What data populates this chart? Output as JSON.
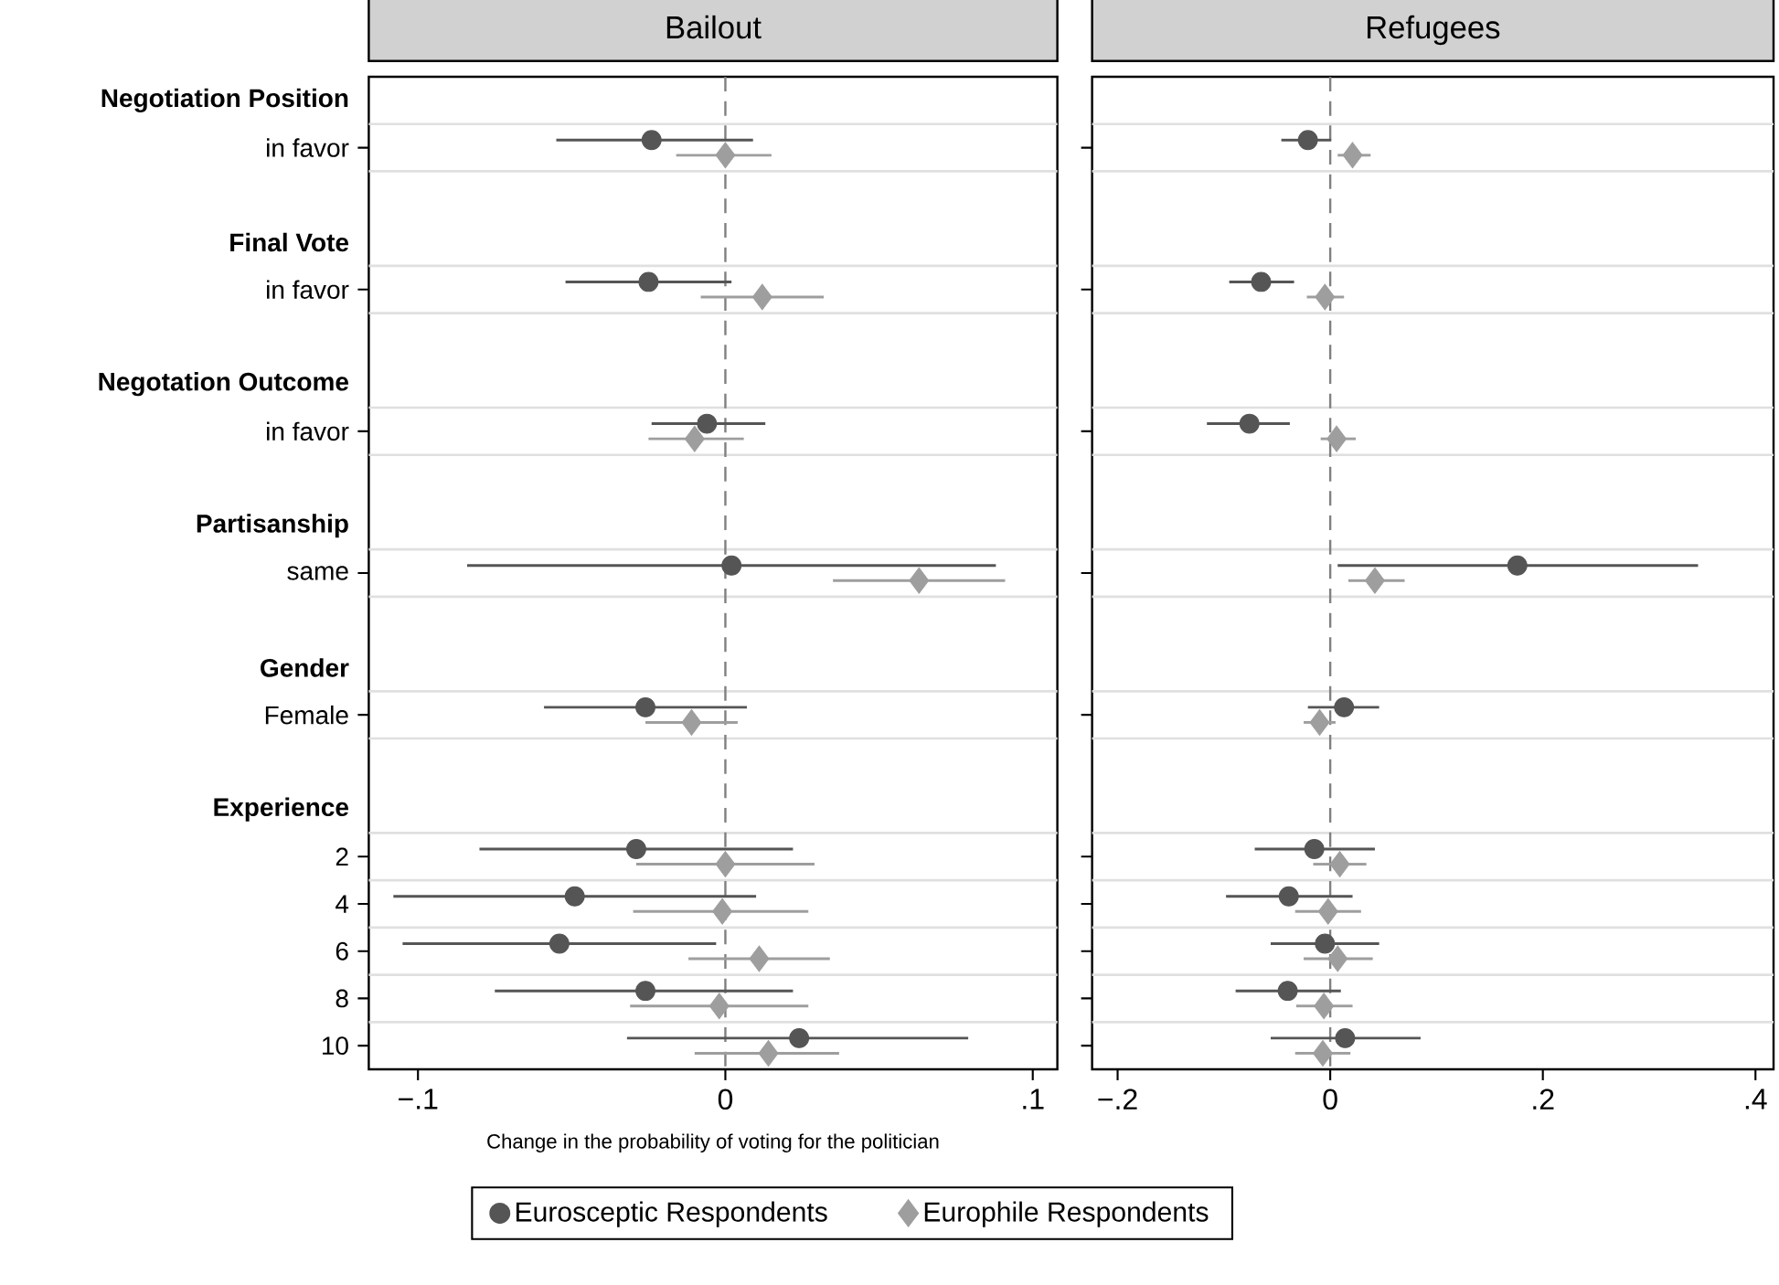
{
  "chart_data": [
    {
      "type": "scatter",
      "title": "Bailout",
      "orientation": "horizontal",
      "categories": [
        "Negotiation Position",
        "in favor",
        null,
        "Final Vote",
        "in favor",
        null,
        "Negotation Outcome",
        "in favor",
        null,
        "Partisanship",
        "same",
        null,
        "Gender",
        "Female",
        null,
        "Experience",
        "2",
        "4",
        "6",
        "8",
        "10"
      ],
      "series": [
        {
          "name": "Eurosceptic Respondents",
          "color": "#555555",
          "marker": "circle",
          "values": [
            null,
            -0.024,
            null,
            null,
            -0.025,
            null,
            null,
            -0.006,
            null,
            null,
            0.002,
            null,
            null,
            -0.026,
            null,
            null,
            -0.029,
            -0.049,
            -0.054,
            -0.026,
            0.024
          ],
          "errors": [
            null,
            [
              -0.055,
              0.009
            ],
            null,
            null,
            [
              -0.052,
              0.002
            ],
            null,
            null,
            [
              -0.024,
              0.013
            ],
            null,
            null,
            [
              -0.084,
              0.088
            ],
            null,
            null,
            [
              -0.059,
              0.007
            ],
            null,
            null,
            [
              -0.08,
              0.022
            ],
            [
              -0.108,
              0.01
            ],
            [
              -0.105,
              -0.003
            ],
            [
              -0.075,
              0.022
            ],
            [
              -0.032,
              0.079
            ]
          ]
        },
        {
          "name": "Europhile Respondents",
          "color": "#9e9e9e",
          "marker": "diamond",
          "values": [
            null,
            0.0,
            null,
            null,
            0.012,
            null,
            null,
            -0.01,
            null,
            null,
            0.063,
            null,
            null,
            -0.011,
            null,
            null,
            0.0,
            -0.001,
            0.011,
            -0.002,
            0.014
          ],
          "errors": [
            null,
            [
              -0.016,
              0.015
            ],
            null,
            null,
            [
              -0.008,
              0.032
            ],
            null,
            null,
            [
              -0.025,
              0.006
            ],
            null,
            null,
            [
              0.035,
              0.091
            ],
            null,
            null,
            [
              -0.026,
              0.004
            ],
            null,
            null,
            [
              -0.029,
              0.029
            ],
            [
              -0.03,
              0.027
            ],
            [
              -0.012,
              0.034
            ],
            [
              -0.031,
              0.027
            ],
            [
              -0.01,
              0.037
            ]
          ]
        }
      ],
      "xlim": [
        -0.116,
        0.108
      ],
      "xticks": [
        {
          "value": -0.1,
          "label": "−.1"
        },
        {
          "value": 0,
          "label": "0"
        },
        {
          "value": 0.1,
          "label": ".1"
        }
      ],
      "xlabel": "Change in the probability of voting for the politician",
      "ref_lines": [
        {
          "axis": "x",
          "value": 0,
          "color": "#808080",
          "line_style": "dashed"
        }
      ],
      "grid": true,
      "legend": "bottom"
    },
    {
      "type": "scatter",
      "title": "Refugees",
      "orientation": "horizontal",
      "categories": [
        null,
        null,
        null,
        null,
        null,
        null,
        null,
        null,
        null,
        null,
        null,
        null,
        null,
        null,
        null,
        null,
        null,
        null,
        null,
        null,
        null
      ],
      "series": [
        {
          "color": "#555555",
          "marker": "circle",
          "values": [
            null,
            -0.021,
            null,
            null,
            -0.065,
            null,
            null,
            -0.076,
            null,
            null,
            0.176,
            null,
            null,
            0.013,
            null,
            null,
            -0.015,
            -0.039,
            -0.005,
            -0.04,
            0.014
          ],
          "errors": [
            null,
            [
              -0.046,
              0.001
            ],
            null,
            null,
            [
              -0.095,
              -0.034
            ],
            null,
            null,
            [
              -0.116,
              -0.038
            ],
            null,
            null,
            [
              0.007,
              0.346
            ],
            null,
            null,
            [
              -0.021,
              0.046
            ],
            null,
            null,
            [
              -0.071,
              0.042
            ],
            [
              -0.098,
              0.021
            ],
            [
              -0.056,
              0.046
            ],
            [
              -0.089,
              0.01
            ],
            [
              -0.056,
              0.085
            ]
          ]
        },
        {
          "color": "#9e9e9e",
          "marker": "diamond",
          "values": [
            null,
            0.021,
            null,
            null,
            -0.005,
            null,
            null,
            0.006,
            null,
            null,
            0.042,
            null,
            null,
            -0.01,
            null,
            null,
            0.009,
            -0.002,
            0.007,
            -0.006,
            -0.007
          ],
          "errors": [
            null,
            [
              0.007,
              0.038
            ],
            null,
            null,
            [
              -0.022,
              0.013
            ],
            null,
            null,
            [
              -0.009,
              0.024
            ],
            null,
            null,
            [
              0.017,
              0.07
            ],
            null,
            null,
            [
              -0.025,
              0.005
            ],
            null,
            null,
            [
              -0.016,
              0.034
            ],
            [
              -0.033,
              0.029
            ],
            [
              -0.025,
              0.04
            ],
            [
              -0.032,
              0.021
            ],
            [
              -0.033,
              0.019
            ]
          ]
        }
      ],
      "xlim": [
        -0.224,
        0.417
      ],
      "xticks": [
        {
          "value": -0.2,
          "label": "−.2"
        },
        {
          "value": 0,
          "label": "0"
        },
        {
          "value": 0.2,
          "label": ".2"
        },
        {
          "value": 0.4,
          "label": ".4"
        }
      ],
      "ref_lines": [
        {
          "axis": "x",
          "value": 0,
          "color": "#808080",
          "line_style": "dashed"
        }
      ],
      "grid": true,
      "tick_labels": "x"
    }
  ]
}
